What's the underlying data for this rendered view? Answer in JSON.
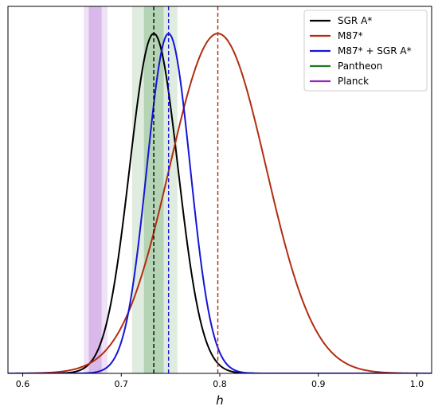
{
  "chart_data": {
    "type": "line",
    "xlabel": "h",
    "ylabel": "",
    "xlim": [
      0.585,
      1.015
    ],
    "ylim": [
      0,
      1.08
    ],
    "xticks": [
      "0.6",
      "0.7",
      "0.8",
      "0.9",
      "1.0"
    ],
    "xtick_values": [
      0.6,
      0.7,
      0.8,
      0.9,
      1.0
    ],
    "legend_position": "top-right",
    "series": [
      {
        "name": "SGR A*",
        "color": "#000000",
        "kind": "gaussian",
        "mean": 0.733,
        "sigma": 0.0245,
        "peak": 1.0
      },
      {
        "name": "M87*",
        "color": "#b22d10",
        "kind": "gaussian",
        "mean": 0.798,
        "sigma": 0.049,
        "peak": 1.0
      },
      {
        "name": "M87* + SGR A*",
        "color": "#1515d6",
        "kind": "gaussian",
        "mean": 0.748,
        "sigma": 0.022,
        "peak": 1.0
      },
      {
        "name": "Pantheon",
        "color": "#1f7a1f",
        "kind": "band",
        "center": 0.733,
        "inner": [
          0.723,
          0.743
        ],
        "outer": [
          0.711,
          0.757
        ]
      },
      {
        "name": "Planck",
        "color": "#8e2bbf",
        "kind": "band",
        "center": 0.674,
        "inner": [
          0.667,
          0.68
        ],
        "outer": [
          0.662,
          0.686
        ]
      }
    ],
    "vlines": [
      {
        "x": 0.733,
        "color": "#000000"
      },
      {
        "x": 0.748,
        "color": "#1515d6"
      },
      {
        "x": 0.798,
        "color": "#b22d10"
      }
    ]
  }
}
